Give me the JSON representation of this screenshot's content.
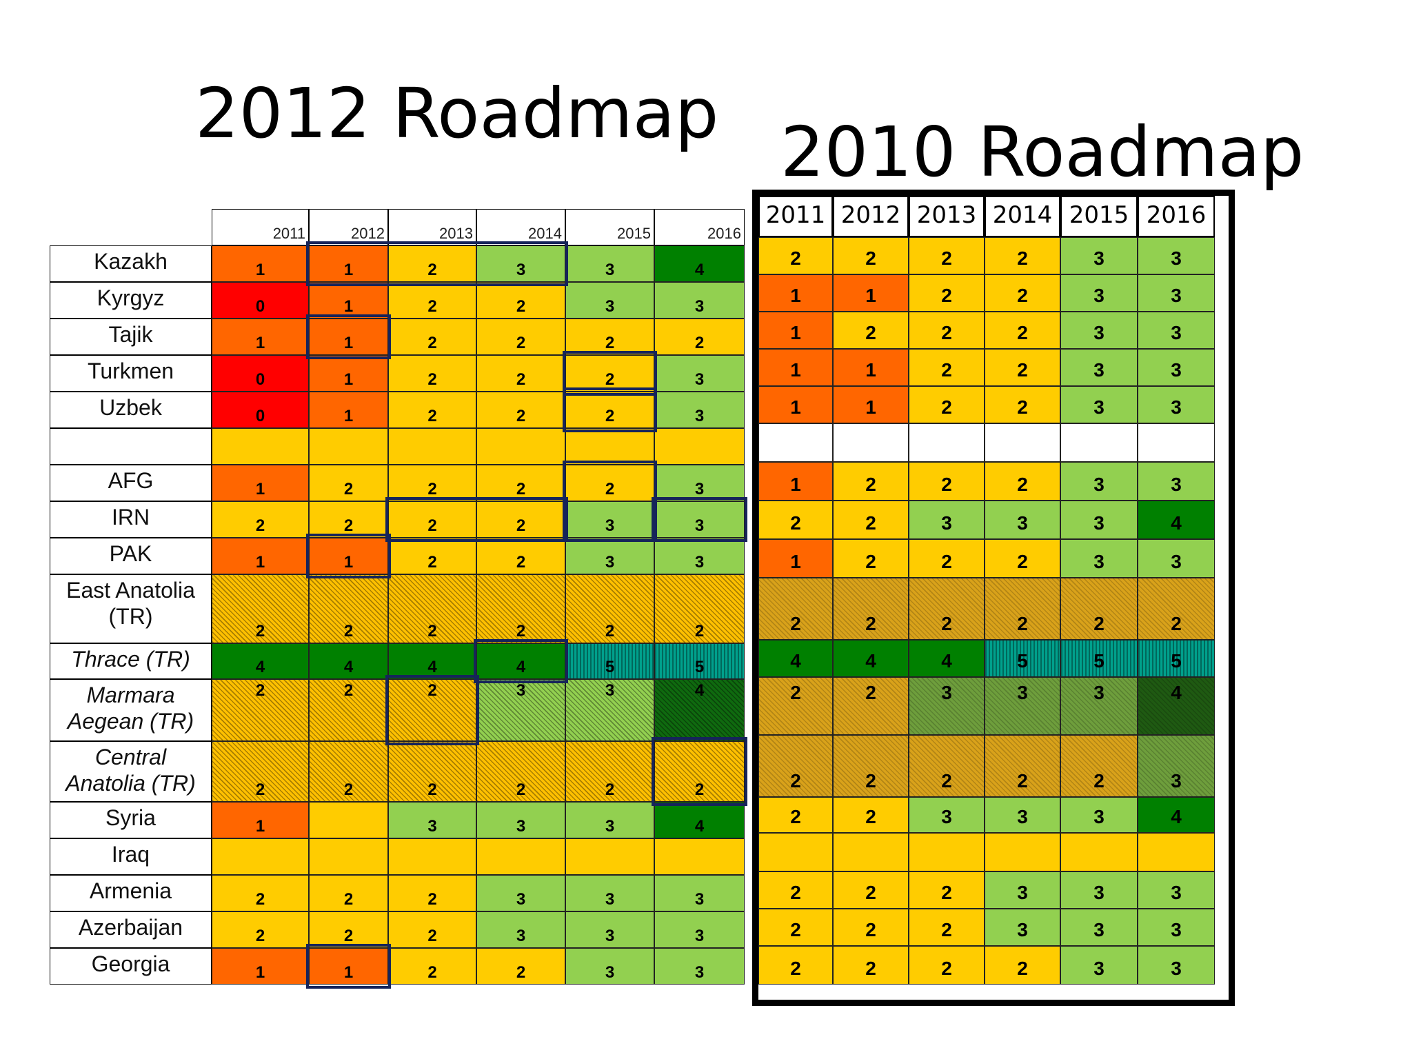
{
  "titles": {
    "left": "2012 Roadmap",
    "right": "2010 Roadmap"
  },
  "colors": {
    "0": "#ff0000",
    "1": "#ff6600",
    "2": "#ffcc00",
    "3": "#92d050",
    "4": "#008000",
    "5": "#00a08c",
    "empty": "#ffffff"
  },
  "chart_data": [
    {
      "type": "table",
      "title": "2012 Roadmap",
      "years": [
        "2011",
        "2012",
        "2013",
        "2014",
        "2015",
        "2016"
      ],
      "rows": [
        {
          "label": "Kazakh",
          "values": [
            "1",
            "1",
            "2",
            "3",
            "3",
            "4"
          ]
        },
        {
          "label": "Kyrgyz",
          "values": [
            "0",
            "1",
            "2",
            "2",
            "3",
            "3"
          ]
        },
        {
          "label": "Tajik",
          "values": [
            "1",
            "1",
            "2",
            "2",
            "2",
            "2"
          ]
        },
        {
          "label": "Turkmen",
          "values": [
            "0",
            "1",
            "2",
            "2",
            "2",
            "3"
          ]
        },
        {
          "label": "Uzbek",
          "values": [
            "0",
            "1",
            "2",
            "2",
            "2",
            "3"
          ]
        },
        {
          "label": "",
          "values": [
            "",
            "",
            "",
            "",
            "",
            ""
          ]
        },
        {
          "label": "AFG",
          "values": [
            "1",
            "2",
            "2",
            "2",
            "2",
            "3"
          ]
        },
        {
          "label": "IRN",
          "values": [
            "2",
            "2",
            "2",
            "2",
            "3",
            "3"
          ]
        },
        {
          "label": "PAK",
          "values": [
            "1",
            "1",
            "2",
            "2",
            "3",
            "3"
          ]
        },
        {
          "label": "East Anatolia (TR)",
          "values": [
            "2",
            "2",
            "2",
            "2",
            "2",
            "2"
          ]
        },
        {
          "label": "Thrace (TR)",
          "values": [
            "4",
            "4",
            "4",
            "4",
            "5",
            "5"
          ]
        },
        {
          "label": "Marmara Aegean (TR)",
          "values": [
            "2",
            "2",
            "2",
            "3",
            "3",
            "4"
          ]
        },
        {
          "label": "Central Anatolia (TR)",
          "values": [
            "2",
            "2",
            "2",
            "2",
            "2",
            "2"
          ]
        },
        {
          "label": "Syria",
          "values": [
            "1",
            "",
            "3",
            "3",
            "3",
            "4"
          ]
        },
        {
          "label": "Iraq",
          "values": [
            "",
            "",
            "",
            "",
            "",
            ""
          ]
        },
        {
          "label": "Armenia",
          "values": [
            "2",
            "2",
            "2",
            "3",
            "3",
            "3"
          ]
        },
        {
          "label": "Azerbaijan",
          "values": [
            "2",
            "2",
            "2",
            "3",
            "3",
            "3"
          ]
        },
        {
          "label": "Georgia",
          "values": [
            "1",
            "1",
            "2",
            "2",
            "3",
            "3"
          ]
        }
      ]
    },
    {
      "type": "table",
      "title": "2010 Roadmap",
      "years": [
        "2011",
        "2012",
        "2013",
        "2014",
        "2015",
        "2016"
      ],
      "rows": [
        {
          "label": "Kazakh",
          "values": [
            "2",
            "2",
            "2",
            "2",
            "3",
            "3"
          ]
        },
        {
          "label": "Kyrgyz",
          "values": [
            "1",
            "1",
            "2",
            "2",
            "3",
            "3"
          ]
        },
        {
          "label": "Tajik",
          "values": [
            "1",
            "2",
            "2",
            "2",
            "3",
            "3"
          ]
        },
        {
          "label": "Turkmen",
          "values": [
            "1",
            "1",
            "2",
            "2",
            "3",
            "3"
          ]
        },
        {
          "label": "Uzbek",
          "values": [
            "1",
            "1",
            "2",
            "2",
            "3",
            "3"
          ]
        },
        {
          "label": "",
          "values": [
            "",
            "",
            "",
            "",
            "",
            ""
          ]
        },
        {
          "label": "AFG",
          "values": [
            "1",
            "2",
            "2",
            "2",
            "3",
            "3"
          ]
        },
        {
          "label": "IRN",
          "values": [
            "2",
            "2",
            "3",
            "3",
            "3",
            "4"
          ]
        },
        {
          "label": "PAK",
          "values": [
            "1",
            "2",
            "2",
            "2",
            "3",
            "3"
          ]
        },
        {
          "label": "East Anatolia (TR)",
          "values": [
            "2",
            "2",
            "2",
            "2",
            "2",
            "2"
          ]
        },
        {
          "label": "Thrace (TR)",
          "values": [
            "4",
            "4",
            "4",
            "5",
            "5",
            "5"
          ]
        },
        {
          "label": "Marmara Aegean (TR)",
          "values": [
            "2",
            "2",
            "3",
            "3",
            "3",
            "4"
          ]
        },
        {
          "label": "Central Anatolia (TR)",
          "values": [
            "2",
            "2",
            "2",
            "2",
            "2",
            "3"
          ]
        },
        {
          "label": "Syria",
          "values": [
            "2",
            "2",
            "3",
            "3",
            "3",
            "4"
          ]
        },
        {
          "label": "Iraq",
          "values": [
            "",
            "",
            "",
            "",
            "",
            ""
          ]
        },
        {
          "label": "Armenia",
          "values": [
            "2",
            "2",
            "2",
            "3",
            "3",
            "3"
          ]
        },
        {
          "label": "Azerbaijan",
          "values": [
            "2",
            "2",
            "2",
            "3",
            "3",
            "3"
          ]
        },
        {
          "label": "Georgia",
          "values": [
            "2",
            "2",
            "2",
            "2",
            "3",
            "3"
          ]
        }
      ]
    }
  ],
  "row_labels_display": [
    [
      "Kazakh"
    ],
    [
      "Kyrgyz"
    ],
    [
      "Tajik"
    ],
    [
      "Turkmen"
    ],
    [
      "Uzbek"
    ],
    [
      ""
    ],
    [
      "AFG"
    ],
    [
      "IRN"
    ],
    [
      "PAK"
    ],
    [
      "East Anatolia",
      "(TR)"
    ],
    [
      "Thrace (TR)"
    ],
    [
      "Marmara",
      "Aegean (TR)"
    ],
    [
      "Central",
      "Anatolia (TR)"
    ],
    [
      "Syria"
    ],
    [
      "Iraq"
    ],
    [
      "Armenia"
    ],
    [
      "Azerbaijan"
    ],
    [
      "Georgia"
    ]
  ],
  "row_styles": [
    "",
    "",
    "",
    "",
    "",
    "",
    "",
    "",
    "",
    "hatch",
    "thrace",
    "hatch",
    "hatch",
    "",
    "iraq",
    "",
    "",
    ""
  ],
  "italic_rows": [
    10,
    11,
    12
  ],
  "highlights_2012": [
    {
      "row_start": 0,
      "row_end": 0,
      "col_start": 1,
      "col_end": 3
    },
    {
      "row_start": 2,
      "row_end": 2,
      "col_start": 1,
      "col_end": 1
    },
    {
      "row_start": 3,
      "row_end": 3,
      "col_start": 4,
      "col_end": 4
    },
    {
      "row_start": 4,
      "row_end": 4,
      "col_start": 4,
      "col_end": 4
    },
    {
      "row_start": 6,
      "row_end": 7,
      "col_start": 4,
      "col_end": 4
    },
    {
      "row_start": 7,
      "row_end": 7,
      "col_start": 2,
      "col_end": 3
    },
    {
      "row_start": 7,
      "row_end": 7,
      "col_start": 5,
      "col_end": 5
    },
    {
      "row_start": 8,
      "row_end": 8,
      "col_start": 1,
      "col_end": 1
    },
    {
      "row_start": 10,
      "row_end": 10,
      "col_start": 3,
      "col_end": 3
    },
    {
      "row_start": 11,
      "row_end": 11,
      "col_start": 2,
      "col_end": 2
    },
    {
      "row_start": 12,
      "row_end": 12,
      "col_start": 5,
      "col_end": 5
    },
    {
      "row_start": 17,
      "row_end": 17,
      "col_start": 1,
      "col_end": 1
    }
  ]
}
